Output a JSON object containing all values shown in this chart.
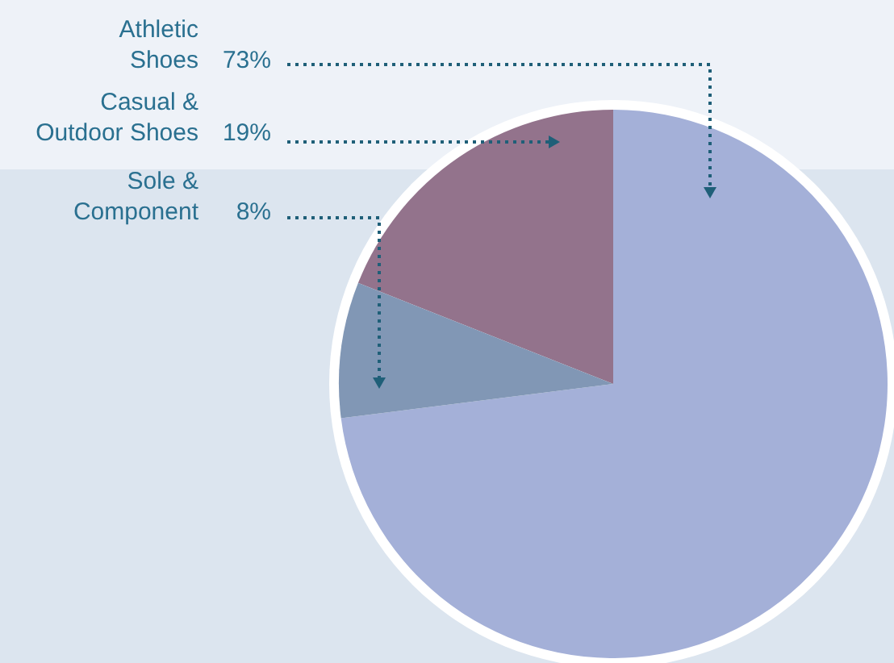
{
  "chart_data": {
    "type": "pie",
    "categories": [
      "Athletic\nShoes",
      "Casual &\nOutdoor Shoes",
      "Sole &\nComponent"
    ],
    "values": [
      73,
      19,
      8
    ],
    "value_labels": [
      "73%",
      "19%",
      "8%"
    ],
    "colors": [
      "#a4b0d8",
      "#93738c",
      "#8197b5"
    ],
    "legend": false
  }
}
